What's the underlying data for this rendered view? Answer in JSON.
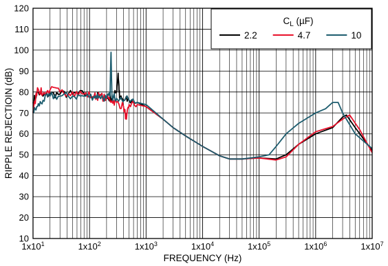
{
  "chart_data": {
    "type": "line",
    "xlabel": "FREQUENCY (Hz)",
    "ylabel": "RIPPLE REJECTIOIN (dB)",
    "x_scale": "log",
    "xlim": [
      10,
      10000000
    ],
    "ylim": [
      10,
      120
    ],
    "grid": true,
    "x_ticks": [
      {
        "value": 10,
        "label": "1x10",
        "exp": "1"
      },
      {
        "value": 100,
        "label": "1x10",
        "exp": "2"
      },
      {
        "value": 1000,
        "label": "1x10",
        "exp": "3"
      },
      {
        "value": 10000,
        "label": "1x10",
        "exp": "4"
      },
      {
        "value": 100000,
        "label": "1x10",
        "exp": "5"
      },
      {
        "value": 1000000,
        "label": "1x10",
        "exp": "6"
      },
      {
        "value": 10000000,
        "label": "1x10",
        "exp": "7"
      }
    ],
    "y_ticks": [
      10,
      20,
      30,
      40,
      50,
      60,
      70,
      80,
      90,
      100,
      110,
      120
    ],
    "legend": {
      "title": "C",
      "title_sub": "L",
      "title_unit": " (µF)",
      "placement": "top-right"
    },
    "series": [
      {
        "name": "2.2",
        "color": "#000000",
        "points": [
          [
            10,
            75
          ],
          [
            12,
            80
          ],
          [
            15,
            78
          ],
          [
            20,
            79
          ],
          [
            30,
            79
          ],
          [
            50,
            79
          ],
          [
            80,
            79
          ],
          [
            120,
            78
          ],
          [
            150,
            78
          ],
          [
            200,
            77
          ],
          [
            250,
            77
          ],
          [
            300,
            80
          ],
          [
            320,
            89
          ],
          [
            340,
            77
          ],
          [
            400,
            76
          ],
          [
            500,
            76
          ],
          [
            700,
            75
          ],
          [
            1000,
            73
          ],
          [
            2000,
            67
          ],
          [
            3000,
            63
          ],
          [
            5000,
            59
          ],
          [
            10000,
            54
          ],
          [
            20000,
            49.5
          ],
          [
            30000,
            48
          ],
          [
            50000,
            48
          ],
          [
            100000,
            48.5
          ],
          [
            200000,
            48
          ],
          [
            300000,
            50
          ],
          [
            500000,
            55
          ],
          [
            1000000,
            60
          ],
          [
            2000000,
            63
          ],
          [
            3000000,
            68
          ],
          [
            3500000,
            69
          ],
          [
            5000000,
            63
          ],
          [
            10000000,
            52
          ]
        ]
      },
      {
        "name": "4.7",
        "color": "#e8102a",
        "points": [
          [
            10,
            70
          ],
          [
            12,
            82
          ],
          [
            15,
            79
          ],
          [
            20,
            81
          ],
          [
            30,
            80
          ],
          [
            50,
            80
          ],
          [
            80,
            79
          ],
          [
            120,
            78
          ],
          [
            150,
            78
          ],
          [
            200,
            77
          ],
          [
            250,
            76
          ],
          [
            300,
            75
          ],
          [
            400,
            73
          ],
          [
            450,
            67
          ],
          [
            500,
            74
          ],
          [
            700,
            74
          ],
          [
            1000,
            73
          ],
          [
            2000,
            67
          ],
          [
            3000,
            63
          ],
          [
            5000,
            59
          ],
          [
            10000,
            54
          ],
          [
            20000,
            49.5
          ],
          [
            30000,
            48
          ],
          [
            50000,
            48
          ],
          [
            100000,
            48.5
          ],
          [
            200000,
            47.5
          ],
          [
            300000,
            49
          ],
          [
            500000,
            55
          ],
          [
            1000000,
            61
          ],
          [
            2000000,
            63.5
          ],
          [
            3000000,
            67
          ],
          [
            4000000,
            69
          ],
          [
            6000000,
            62
          ],
          [
            10000000,
            51
          ]
        ]
      },
      {
        "name": "10",
        "color": "#1c5c6e",
        "points": [
          [
            10,
            70
          ],
          [
            12,
            73
          ],
          [
            15,
            76
          ],
          [
            20,
            78
          ],
          [
            30,
            78
          ],
          [
            50,
            78
          ],
          [
            80,
            78
          ],
          [
            120,
            78
          ],
          [
            150,
            78
          ],
          [
            200,
            77
          ],
          [
            230,
            78
          ],
          [
            240,
            99
          ],
          [
            250,
            78
          ],
          [
            300,
            77
          ],
          [
            500,
            76
          ],
          [
            700,
            75
          ],
          [
            1000,
            74
          ],
          [
            2000,
            67
          ],
          [
            3000,
            63
          ],
          [
            5000,
            59
          ],
          [
            10000,
            54
          ],
          [
            20000,
            49.5
          ],
          [
            30000,
            48
          ],
          [
            50000,
            48
          ],
          [
            100000,
            49
          ],
          [
            150000,
            50
          ],
          [
            200000,
            54
          ],
          [
            300000,
            60
          ],
          [
            500000,
            65
          ],
          [
            1000000,
            70
          ],
          [
            1500000,
            72
          ],
          [
            2000000,
            75
          ],
          [
            2500000,
            75
          ],
          [
            3000000,
            70
          ],
          [
            5000000,
            60
          ],
          [
            10000000,
            53
          ]
        ]
      }
    ]
  }
}
